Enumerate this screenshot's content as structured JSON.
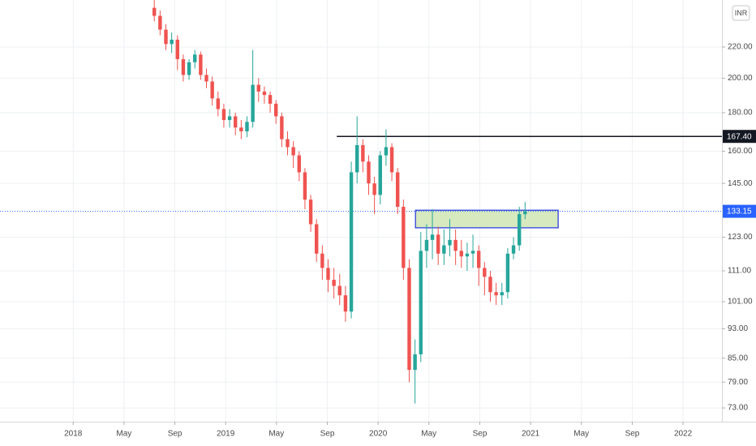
{
  "chart_data": {
    "type": "candlestick",
    "currency": "INR",
    "log_scale": true,
    "grid": true,
    "up_color": "#26a69a",
    "down_color": "#ef5350",
    "xlim": [
      2017.52,
      2022.255
    ],
    "ylim": [
      70,
      254
    ],
    "xticks": [
      {
        "value": 2018,
        "label": "2018"
      },
      {
        "value": 2018.333,
        "label": "May"
      },
      {
        "value": 2018.667,
        "label": "Sep"
      },
      {
        "value": 2019,
        "label": "2019"
      },
      {
        "value": 2019.333,
        "label": "May"
      },
      {
        "value": 2019.667,
        "label": "Sep"
      },
      {
        "value": 2020,
        "label": "2020"
      },
      {
        "value": 2020.333,
        "label": "May"
      },
      {
        "value": 2020.667,
        "label": "Sep"
      },
      {
        "value": 2021,
        "label": "2021"
      },
      {
        "value": 2021.333,
        "label": "May"
      },
      {
        "value": 2021.667,
        "label": "Sep"
      },
      {
        "value": 2022,
        "label": "2022"
      }
    ],
    "yticks": [
      {
        "value": 73,
        "label": "73.00"
      },
      {
        "value": 79,
        "label": "79.00"
      },
      {
        "value": 85,
        "label": "85.00"
      },
      {
        "value": 93,
        "label": "93.00"
      },
      {
        "value": 101,
        "label": "101.00"
      },
      {
        "value": 111,
        "label": "111.00"
      },
      {
        "value": 123,
        "label": "123.00"
      },
      {
        "value": 145,
        "label": "145.00"
      },
      {
        "value": 160,
        "label": "160.00"
      },
      {
        "value": 180,
        "label": "180.00"
      },
      {
        "value": 200,
        "label": "200.00"
      },
      {
        "value": 220,
        "label": "220.00"
      }
    ],
    "x": [
      2018.532,
      2018.57,
      2018.608,
      2018.646,
      2018.684,
      2018.722,
      2018.76,
      2018.798,
      2018.836,
      2018.874,
      2018.912,
      2018.95,
      2018.988,
      2019.026,
      2019.064,
      2019.102,
      2019.14,
      2019.178,
      2019.216,
      2019.254,
      2019.292,
      2019.33,
      2019.368,
      2019.406,
      2019.444,
      2019.482,
      2019.52,
      2019.558,
      2019.596,
      2019.634,
      2019.672,
      2019.71,
      2019.748,
      2019.786,
      2019.824,
      2019.862,
      2019.9,
      2019.938,
      2019.976,
      2020.014,
      2020.052,
      2020.09,
      2020.128,
      2020.166,
      2020.204,
      2020.242,
      2020.28,
      2020.318,
      2020.356,
      2020.394,
      2020.432,
      2020.47,
      2020.508,
      2020.546,
      2020.584,
      2020.622,
      2020.66,
      2020.698,
      2020.736,
      2020.774,
      2020.812,
      2020.85,
      2020.888,
      2020.926,
      2020.964
    ],
    "open": [
      248,
      242,
      232,
      222,
      225,
      212,
      202,
      210,
      215,
      202,
      198,
      188,
      182,
      176,
      178,
      172,
      170,
      175,
      196,
      192,
      190,
      185,
      178,
      166,
      162,
      158,
      150,
      138,
      128,
      117,
      112,
      108,
      106,
      103,
      98,
      150,
      163,
      155,
      145,
      140,
      158,
      162,
      150,
      135,
      112,
      82,
      86,
      118,
      122,
      124,
      117,
      120,
      122,
      118,
      116,
      117,
      118,
      112,
      109,
      104,
      103,
      104,
      117,
      120,
      132
    ],
    "high": [
      254,
      246,
      236,
      230,
      228,
      215,
      212,
      218,
      217,
      206,
      201,
      192,
      185,
      182,
      180,
      176,
      178,
      218,
      200,
      195,
      192,
      187,
      180,
      170,
      165,
      160,
      152,
      140,
      130,
      120,
      115,
      112,
      110,
      106,
      155,
      178,
      166,
      158,
      148,
      160,
      171,
      164,
      152,
      138,
      115,
      90,
      125,
      128,
      134,
      127,
      126,
      130,
      126,
      122,
      121,
      124,
      120,
      114,
      111,
      107,
      107,
      119,
      123,
      135,
      137
    ],
    "low": [
      238,
      228,
      218,
      216,
      205,
      198,
      199,
      206,
      199,
      194,
      184,
      178,
      172,
      172,
      168,
      166,
      167,
      172,
      186,
      185,
      180,
      174,
      162,
      158,
      152,
      146,
      134,
      125,
      114,
      108,
      104,
      102,
      100,
      95,
      96,
      145,
      150,
      140,
      132,
      136,
      153,
      146,
      132,
      108,
      79,
      74,
      84,
      112,
      115,
      113,
      113,
      116,
      113,
      112,
      111,
      112,
      106,
      103,
      101,
      100,
      100,
      102,
      115,
      118,
      130
    ],
    "close": [
      242,
      232,
      222,
      225,
      212,
      202,
      210,
      215,
      202,
      198,
      188,
      182,
      176,
      178,
      172,
      170,
      175,
      196,
      192,
      190,
      185,
      178,
      166,
      162,
      158,
      150,
      138,
      128,
      117,
      112,
      108,
      106,
      103,
      98,
      150,
      163,
      155,
      145,
      140,
      158,
      162,
      150,
      135,
      112,
      82,
      86,
      118,
      122,
      124,
      117,
      120,
      122,
      118,
      116,
      117,
      118,
      112,
      109,
      104,
      103,
      104,
      117,
      120,
      132,
      133.15
    ],
    "horizontal_line": {
      "value": 167.4,
      "label": "167.40",
      "x_start": 2019.729,
      "color": "#131722"
    },
    "zone": {
      "x": [
        2020.245,
        2021.181
      ],
      "y": [
        126.6,
        133.6
      ],
      "fill": "#d6e9bf",
      "border": "#2133e0"
    },
    "last_price": {
      "value": 133.15,
      "color": "#2962ff"
    }
  }
}
